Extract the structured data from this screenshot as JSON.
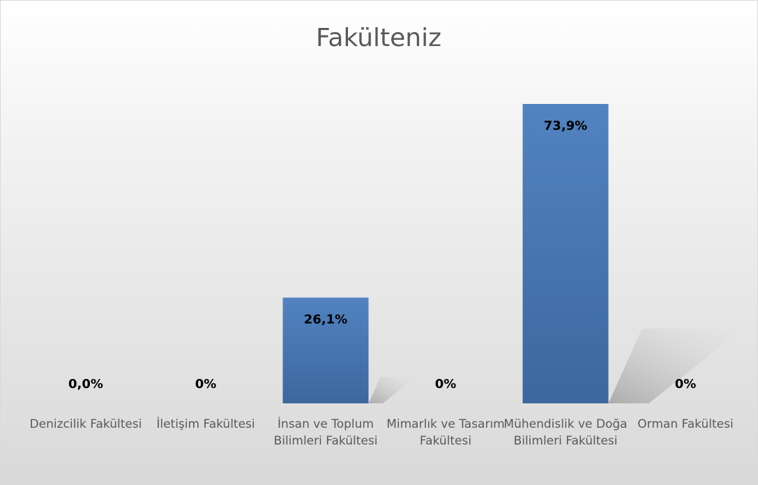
{
  "chart_data": {
    "type": "bar",
    "title": "Fakülteniz",
    "categories": [
      "Denizcilik Fakültesi",
      "İletişim Fakültesi",
      "İnsan ve Toplum Bilimleri Fakültesi",
      "Mimarlık ve Tasarım Fakültesi",
      "Mühendislik ve Doğa Bilimleri Fakültesi",
      "Orman Fakültesi"
    ],
    "values": [
      0,
      0,
      26.1,
      0,
      73.9,
      0
    ],
    "value_labels": [
      "0,0%",
      "0%",
      "26,1%",
      "0%",
      "73,9%",
      "0%"
    ],
    "color": "#4f81bd"
  }
}
